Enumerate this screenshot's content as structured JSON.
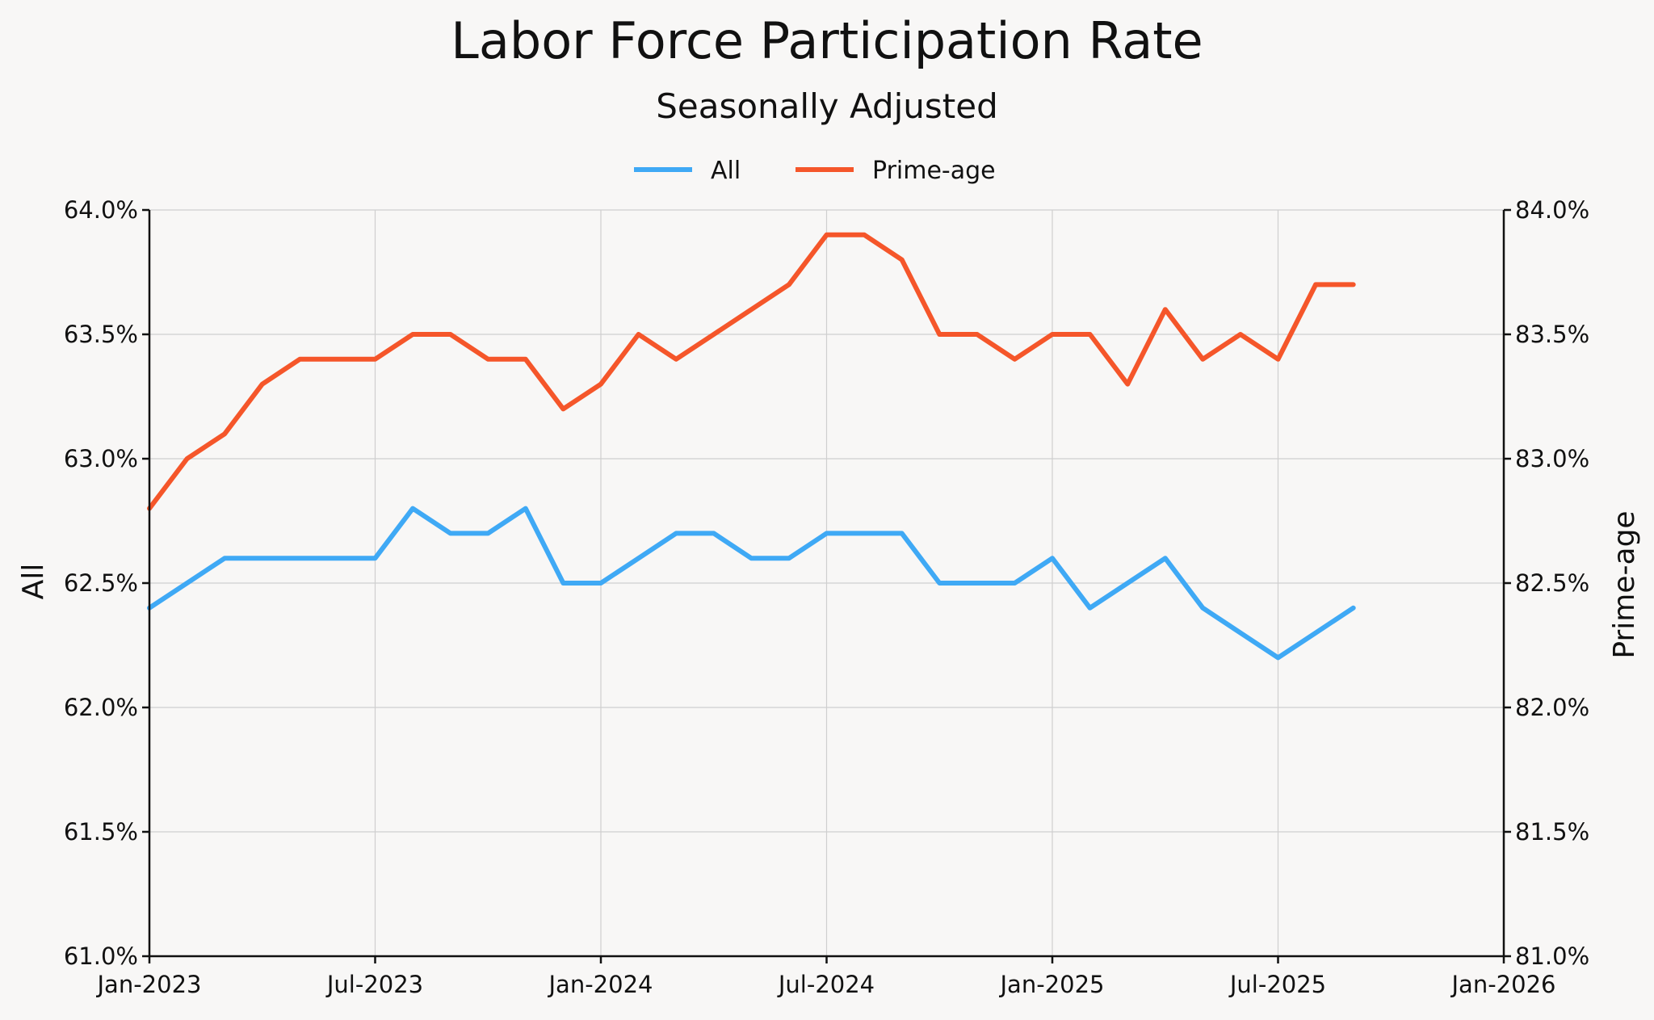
{
  "chart_data": {
    "type": "line",
    "title": "Labor Force Participation Rate",
    "subtitle": "Seasonally Adjusted",
    "x_ticks": [
      "Jan-2023",
      "Jul-2023",
      "Jan-2024",
      "Jul-2024",
      "Jan-2025",
      "Jul-2025",
      "Jan-2026"
    ],
    "xlim": [
      "2023-01",
      "2026-01"
    ],
    "x": [
      "2023-01",
      "2023-02",
      "2023-03",
      "2023-04",
      "2023-05",
      "2023-06",
      "2023-07",
      "2023-08",
      "2023-09",
      "2023-10",
      "2023-11",
      "2023-12",
      "2024-01",
      "2024-02",
      "2024-03",
      "2024-04",
      "2024-05",
      "2024-06",
      "2024-07",
      "2024-08",
      "2024-09",
      "2024-10",
      "2024-11",
      "2024-12",
      "2025-01",
      "2025-02",
      "2025-03",
      "2025-04",
      "2025-05",
      "2025-06",
      "2025-07",
      "2025-08",
      "2025-09"
    ],
    "left_axis": {
      "label": "All",
      "ylim": [
        61.0,
        64.0
      ],
      "ticks": [
        "61.0%",
        "61.5%",
        "62.0%",
        "62.5%",
        "63.0%",
        "63.5%",
        "64.0%"
      ],
      "tick_values": [
        61.0,
        61.5,
        62.0,
        62.5,
        63.0,
        63.5,
        64.0
      ]
    },
    "right_axis": {
      "label": "Prime-age",
      "ylim": [
        81.0,
        84.0
      ],
      "ticks": [
        "81.0%",
        "81.5%",
        "82.0%",
        "82.5%",
        "83.0%",
        "83.5%",
        "84.0%"
      ],
      "tick_values": [
        81.0,
        81.5,
        82.0,
        82.5,
        83.0,
        83.5,
        84.0
      ]
    },
    "grid": true,
    "legend_position": "top-center",
    "series": [
      {
        "name": "All",
        "axis": "left",
        "color": "#3fa9f5",
        "values": [
          62.4,
          62.5,
          62.6,
          62.6,
          62.6,
          62.6,
          62.6,
          62.8,
          62.7,
          62.7,
          62.8,
          62.5,
          62.5,
          62.6,
          62.7,
          62.7,
          62.6,
          62.6,
          62.7,
          62.7,
          62.7,
          62.5,
          62.5,
          62.5,
          62.6,
          62.4,
          62.5,
          62.6,
          62.4,
          62.3,
          62.2,
          62.3,
          62.4
        ]
      },
      {
        "name": "Prime-age",
        "axis": "right",
        "color": "#f5562a",
        "values": [
          82.8,
          83.0,
          83.1,
          83.3,
          83.4,
          83.4,
          83.4,
          83.5,
          83.5,
          83.4,
          83.4,
          83.2,
          83.3,
          83.5,
          83.4,
          83.5,
          83.6,
          83.7,
          83.9,
          83.9,
          83.8,
          83.5,
          83.5,
          83.4,
          83.5,
          83.5,
          83.3,
          83.6,
          83.4,
          83.5,
          83.4,
          83.7,
          83.7
        ]
      }
    ]
  }
}
